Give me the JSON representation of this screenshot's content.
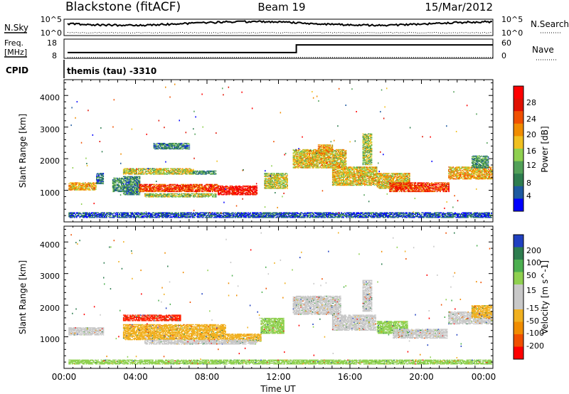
{
  "header": {
    "station": "Blackstone (fitACF)",
    "beam": "Beam 19",
    "date": "15/Mar/2012"
  },
  "top_panels": {
    "nsky_label": "N.Sky",
    "nsearch_label": "N.Search",
    "noise_ticks": [
      "10^5",
      "10^0"
    ],
    "noise_ticks_right": [
      "10^5",
      "10^0"
    ],
    "freq_label": "Freq.",
    "freq_unit": "[MHz]",
    "freq_ticks": [
      "18",
      "8"
    ],
    "nave_label": "Nave",
    "nave_ticks": [
      "60",
      "0"
    ],
    "cpid_label": "CPID",
    "cpid_value": "themis (tau) -3310"
  },
  "chart_data": [
    {
      "type": "heatmap",
      "name": "power",
      "xlabel": "",
      "ylabel": "Slant Range [km]",
      "xlim": [
        0,
        24
      ],
      "ylim": [
        0,
        4500
      ],
      "yticks": [
        "1000",
        "2000",
        "3000",
        "4000"
      ],
      "colorbar": {
        "label": "Power [dB]",
        "ticks": [
          "4",
          "8",
          "12",
          "16",
          "20",
          "24",
          "28"
        ],
        "colors": [
          "#0000ff",
          "#1e5aa0",
          "#2e7d4f",
          "#52a058",
          "#8fd050",
          "#f0c020",
          "#f08c00",
          "#f05000",
          "#e01000",
          "#ff0000"
        ]
      },
      "bands": [
        {
          "t0": 0.25,
          "t1": 1.8,
          "r0": 1000,
          "r1": 1250,
          "level": 0.6
        },
        {
          "t0": 1.8,
          "t1": 2.2,
          "r0": 1200,
          "r1": 1550,
          "level": 0.2
        },
        {
          "t0": 2.7,
          "t1": 3.3,
          "r0": 950,
          "r1": 1400,
          "level": 0.3
        },
        {
          "t0": 3.3,
          "t1": 7.2,
          "r0": 1500,
          "r1": 1700,
          "level": 0.5
        },
        {
          "t0": 7.2,
          "t1": 8.5,
          "r0": 1500,
          "r1": 1620,
          "level": 0.3
        },
        {
          "t0": 3.3,
          "t1": 4.2,
          "r0": 850,
          "r1": 1450,
          "level": 0.25
        },
        {
          "t0": 4.2,
          "t1": 8.6,
          "r0": 950,
          "r1": 1200,
          "level": 0.8
        },
        {
          "t0": 8.6,
          "t1": 10.8,
          "r0": 850,
          "r1": 1150,
          "level": 0.9
        },
        {
          "t0": 4.5,
          "t1": 8.5,
          "r0": 780,
          "r1": 900,
          "level": 0.45
        },
        {
          "t0": 5.0,
          "t1": 7.0,
          "r0": 2300,
          "r1": 2500,
          "level": 0.25
        },
        {
          "t0": 11.2,
          "t1": 12.5,
          "r0": 1050,
          "r1": 1550,
          "level": 0.5
        },
        {
          "t0": 12.8,
          "t1": 15.8,
          "r0": 1700,
          "r1": 2300,
          "level": 0.55
        },
        {
          "t0": 14.2,
          "t1": 15.0,
          "r0": 2100,
          "r1": 2450,
          "level": 0.6
        },
        {
          "t0": 15.0,
          "t1": 17.5,
          "r0": 1150,
          "r1": 1750,
          "level": 0.55
        },
        {
          "t0": 16.7,
          "t1": 17.2,
          "r0": 1800,
          "r1": 2800,
          "level": 0.45
        },
        {
          "t0": 17.5,
          "t1": 19.3,
          "r0": 1050,
          "r1": 1550,
          "level": 0.55
        },
        {
          "t0": 18.2,
          "t1": 21.5,
          "r0": 950,
          "r1": 1250,
          "level": 0.8
        },
        {
          "t0": 21.5,
          "t1": 23.9,
          "r0": 1350,
          "r1": 1750,
          "level": 0.6
        },
        {
          "t0": 22.8,
          "t1": 23.7,
          "r0": 1700,
          "r1": 2100,
          "level": 0.3
        },
        {
          "t0": 0.25,
          "t1": 23.9,
          "r0": 130,
          "r1": 290,
          "level": 0.15
        }
      ]
    },
    {
      "type": "heatmap",
      "name": "velocity",
      "xlabel": "Time UT",
      "ylabel": "Slant Range [km]",
      "xlim": [
        0,
        24
      ],
      "ylim": [
        0,
        4500
      ],
      "yticks": [
        "1000",
        "2000",
        "3000",
        "4000"
      ],
      "xticks": [
        "00:00",
        "04:00",
        "08:00",
        "12:00",
        "16:00",
        "20:00",
        "00:00"
      ],
      "colorbar": {
        "label": "Velocity [m s^-1]",
        "ticks": [
          "200",
          "100",
          "50",
          "15",
          "-15",
          "-50",
          "-100",
          "-200"
        ],
        "colors": [
          "#2040c0",
          "#2e7d4f",
          "#4caf50",
          "#8fd050",
          "#c8c8c8",
          "#c8c8c8",
          "#f0b020",
          "#f08c00",
          "#f05000",
          "#ff0000"
        ]
      },
      "bands": [
        {
          "t0": 0.25,
          "t1": 2.2,
          "r0": 1050,
          "r1": 1300,
          "color": "#c8c8c8"
        },
        {
          "t0": 3.3,
          "t1": 6.5,
          "r0": 1500,
          "r1": 1680,
          "color": "#ff2000"
        },
        {
          "t0": 3.3,
          "t1": 9.0,
          "r0": 900,
          "r1": 1400,
          "color": "#f0b020"
        },
        {
          "t0": 9.0,
          "t1": 11.0,
          "r0": 850,
          "r1": 1100,
          "color": "#f0b020"
        },
        {
          "t0": 4.5,
          "t1": 10.8,
          "r0": 760,
          "r1": 900,
          "color": "#c8c8c8"
        },
        {
          "t0": 11.0,
          "t1": 12.3,
          "r0": 1100,
          "r1": 1600,
          "color": "#8fd050"
        },
        {
          "t0": 12.8,
          "t1": 15.5,
          "r0": 1700,
          "r1": 2300,
          "color": "#c8c8c8"
        },
        {
          "t0": 15.0,
          "t1": 17.4,
          "r0": 1200,
          "r1": 1700,
          "color": "#c8c8c8"
        },
        {
          "t0": 16.7,
          "t1": 17.2,
          "r0": 1800,
          "r1": 2800,
          "color": "#c8c8c8"
        },
        {
          "t0": 17.5,
          "t1": 19.2,
          "r0": 1100,
          "r1": 1500,
          "color": "#8fd050"
        },
        {
          "t0": 18.4,
          "t1": 21.4,
          "r0": 950,
          "r1": 1250,
          "color": "#c8c8c8"
        },
        {
          "t0": 21.5,
          "t1": 23.9,
          "r0": 1400,
          "r1": 1800,
          "color": "#c8c8c8"
        },
        {
          "t0": 22.8,
          "t1": 23.9,
          "r0": 1600,
          "r1": 2000,
          "color": "#f0b020"
        },
        {
          "t0": 0.25,
          "t1": 23.9,
          "r0": 130,
          "r1": 280,
          "color": "#8fd050"
        }
      ]
    }
  ],
  "freq_series": {
    "t": [
      0.2,
      13.0,
      13.0,
      24.0
    ],
    "mhz": [
      11,
      11,
      15,
      15
    ]
  },
  "nave_series": {
    "t": [
      0.2,
      24.0
    ],
    "nave": [
      3,
      3
    ]
  }
}
